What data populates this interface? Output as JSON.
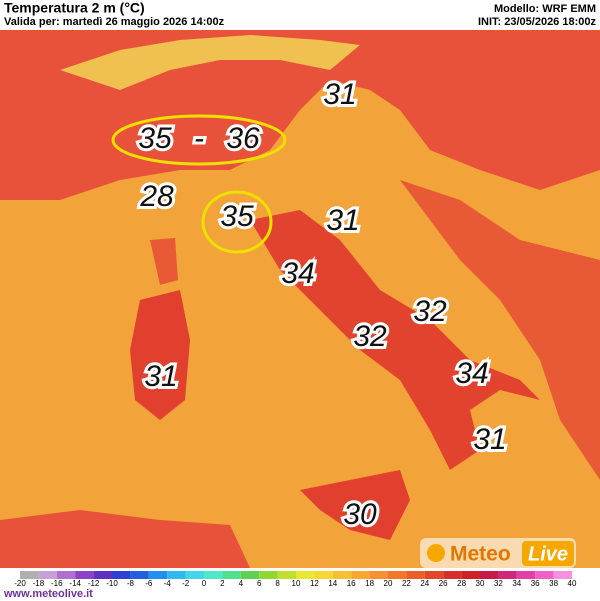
{
  "header": {
    "title": "Temperatura 2 m (°C)",
    "valid": "Valida per: martedì 26 maggio 2026 14:00z",
    "model": "Modello: WRF EMM",
    "init": "INIT: 23/05/2026 18:00z"
  },
  "callouts": [
    {
      "values": [
        35,
        36
      ],
      "separator": "-"
    },
    {
      "values": [
        28
      ]
    },
    {
      "values": [
        35
      ]
    },
    {
      "values": [
        31
      ]
    },
    {
      "values": [
        31
      ]
    },
    {
      "values": [
        34
      ]
    },
    {
      "values": [
        32
      ]
    },
    {
      "values": [
        32
      ]
    },
    {
      "values": [
        31
      ]
    },
    {
      "values": [
        34
      ]
    },
    {
      "values": [
        31
      ]
    },
    {
      "values": [
        30
      ]
    }
  ],
  "legend": {
    "values": [
      -20,
      -18,
      -16,
      -14,
      -12,
      -10,
      -8,
      -6,
      -4,
      -2,
      0,
      2,
      4,
      6,
      8,
      10,
      12,
      14,
      16,
      18,
      20,
      22,
      24,
      26,
      28,
      30,
      32,
      34,
      36,
      38,
      40
    ],
    "colors": [
      "#b0b0b0",
      "#c8a0d8",
      "#b070d0",
      "#9040c8",
      "#6030c0",
      "#3040d0",
      "#2060e0",
      "#2090f0",
      "#30b8f0",
      "#40d8e8",
      "#50e8c8",
      "#50e090",
      "#60d050",
      "#90d830",
      "#c0e030",
      "#e8e830",
      "#f8d830",
      "#f8c030",
      "#f8a830",
      "#f89030",
      "#f07828",
      "#e86028",
      "#e04828",
      "#d83028",
      "#d02028",
      "#c81848",
      "#d02878",
      "#e040a8",
      "#f060c8",
      "#f890e0",
      "#f8c0f0"
    ]
  },
  "footer": {
    "website": "www.meteolive.it",
    "logo": [
      "Meteo",
      "Live"
    ]
  }
}
